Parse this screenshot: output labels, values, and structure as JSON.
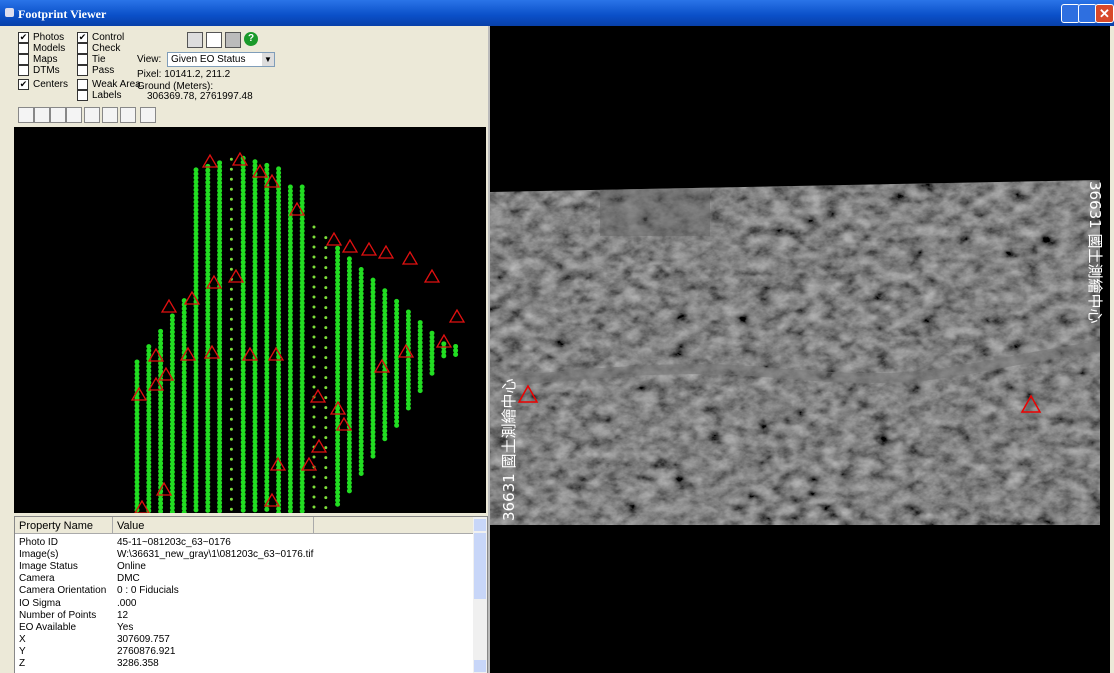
{
  "window": {
    "title": "Footprint Viewer"
  },
  "layers": [
    {
      "label": "Photos",
      "checked": true
    },
    {
      "label": "Models",
      "checked": false
    },
    {
      "label": "Maps",
      "checked": false
    },
    {
      "label": "DTMs",
      "checked": false
    },
    {
      "label": "Centers",
      "checked": true
    }
  ],
  "options": [
    {
      "label": "Control",
      "checked": true
    },
    {
      "label": "Check",
      "checked": false
    },
    {
      "label": "Tie",
      "checked": false
    },
    {
      "label": "Pass",
      "checked": false
    },
    {
      "label": "Weak Area",
      "checked": false
    },
    {
      "label": "Labels",
      "checked": false
    }
  ],
  "view": {
    "label": "View:",
    "selected": "Given EO Status"
  },
  "pixel": "Pixel: 10141.2, 211.2",
  "ground_label": "Ground (Meters):",
  "ground": "306369.78, 2761997.48",
  "properties": {
    "headers": [
      "Property Name",
      "Value"
    ],
    "rows": [
      [
        "Photo ID",
        "45-11~081203c_63~0176"
      ],
      [
        "Image(s)",
        "W:\\36631_new_gray\\1\\081203c_63~0176.tif"
      ],
      [
        "Image Status",
        "Online"
      ],
      [
        "Camera",
        "DMC"
      ],
      [
        "Camera Orientation",
        "0 : 0 Fiducials"
      ],
      [
        "IO Sigma",
        ".000"
      ],
      [
        "Number of Points",
        "12"
      ],
      [
        "EO Available",
        "Yes"
      ],
      [
        "X",
        "307609.757"
      ],
      [
        "Y",
        "2760876.921"
      ],
      [
        "Z",
        "3286.358"
      ]
    ]
  },
  "image": {
    "watermark": "36631 國土測繪中心"
  }
}
